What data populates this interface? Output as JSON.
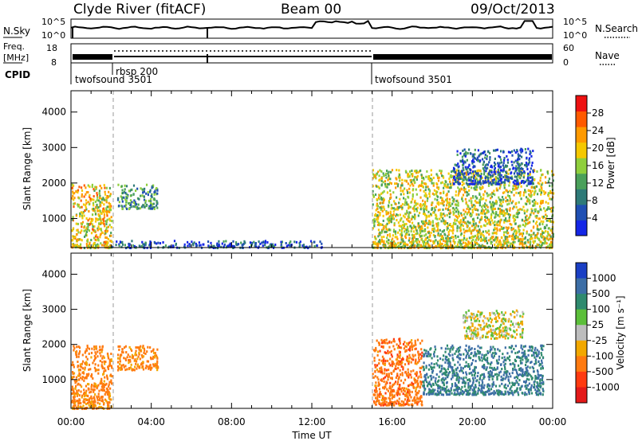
{
  "header": {
    "station": "Clyde River (fitACF)",
    "beam": "Beam 00",
    "date": "09/Oct/2013"
  },
  "panel_labels": {
    "nsky": "N.Sky",
    "freq_line1": "Freq.",
    "freq_line2": "[MHz]",
    "cpid": "CPID",
    "nsearch": "N.Search",
    "nave": "Nave"
  },
  "nsky_axis": {
    "left_top": "10^5",
    "left_bottom": "10^0",
    "right_top": "10^5",
    "right_bottom": "10^0"
  },
  "freq_axis": {
    "left_top": "18",
    "left_bottom": "8",
    "right_top": "60",
    "right_bottom": "0"
  },
  "cpid_segments": [
    {
      "label": "twofsound 3501",
      "start": 0.0
    },
    {
      "label": "rbsp 200",
      "start": 2.0
    },
    {
      "label": "twofsound 3501",
      "start": 15.0
    }
  ],
  "xaxis": {
    "label": "Time UT",
    "ticks": [
      "00:00",
      "04:00",
      "08:00",
      "12:00",
      "16:00",
      "20:00",
      "00:00"
    ],
    "tick_hours": [
      0,
      4,
      8,
      12,
      16,
      20,
      24
    ]
  },
  "yaxis": {
    "label": "Slant Range [km]",
    "ticks": [
      "1000",
      "2000",
      "3000",
      "4000"
    ],
    "tick_values": [
      1000,
      2000,
      3000,
      4000
    ]
  },
  "power_colorbar": {
    "label": "Power [dB]",
    "ticks": [
      "4",
      "8",
      "12",
      "16",
      "20",
      "24",
      "28"
    ],
    "colors": [
      "#1426e6",
      "#1f4fb3",
      "#2e7a78",
      "#4aa05a",
      "#8fcf3c",
      "#f5c800",
      "#ff9a00",
      "#ff5a00",
      "#ee1111"
    ]
  },
  "velocity_colorbar": {
    "label": "Velocity [m s⁻¹]",
    "ticks": [
      "1000",
      "500",
      "100",
      "25",
      "-25",
      "-100",
      "-500",
      "-1000"
    ],
    "colors": [
      "#1a3fc4",
      "#3c6ea6",
      "#2f8a6e",
      "#5cbf3a",
      "#bdbdbd",
      "#f2a800",
      "#ff7a10",
      "#ff3a10",
      "#e41a1a"
    ]
  },
  "chart_data": [
    {
      "type": "heatmap",
      "title": "Power",
      "xlabel": "Time UT",
      "ylabel": "Slant Range [km]",
      "xlim": [
        0,
        24
      ],
      "ylim": [
        180,
        4600
      ],
      "colorbar_label": "Power [dB]",
      "colorbar_ticks": [
        4,
        8,
        12,
        16,
        20,
        24,
        28
      ],
      "cpid_boundaries_hours": [
        2.0,
        15.0
      ],
      "scatter_regions": [
        {
          "t": [
            0.0,
            2.0
          ],
          "r": [
            200,
            2000
          ],
          "dB": 22
        },
        {
          "t": [
            2.3,
            4.3
          ],
          "r": [
            1300,
            2000
          ],
          "dB": 12
        },
        {
          "t": [
            2.0,
            12.5
          ],
          "r": [
            200,
            400
          ],
          "dB": 6
        },
        {
          "t": [
            15.0,
            24.0
          ],
          "r": [
            200,
            2400
          ],
          "dB": 20
        },
        {
          "t": [
            19.0,
            23.0
          ],
          "r": [
            2000,
            3000
          ],
          "dB": 6
        }
      ]
    },
    {
      "type": "heatmap",
      "title": "Velocity",
      "xlabel": "Time UT",
      "ylabel": "Slant Range [km]",
      "xlim": [
        0,
        24
      ],
      "ylim": [
        180,
        4600
      ],
      "colorbar_label": "Velocity [m s⁻¹]",
      "colorbar_ticks": [
        1000,
        500,
        100,
        25,
        -25,
        -100,
        -500,
        -1000
      ],
      "scatter_regions": [
        {
          "t": [
            0.0,
            2.0
          ],
          "r": [
            200,
            2000
          ],
          "v": -120
        },
        {
          "t": [
            2.3,
            4.3
          ],
          "r": [
            1300,
            2000
          ],
          "v": -100
        },
        {
          "t": [
            15.0,
            17.5
          ],
          "r": [
            300,
            2200
          ],
          "v": -200
        },
        {
          "t": [
            17.5,
            23.5
          ],
          "r": [
            600,
            2000
          ],
          "v": 300
        },
        {
          "t": [
            19.5,
            22.5
          ],
          "r": [
            2200,
            3000
          ],
          "v": 0
        }
      ]
    }
  ]
}
